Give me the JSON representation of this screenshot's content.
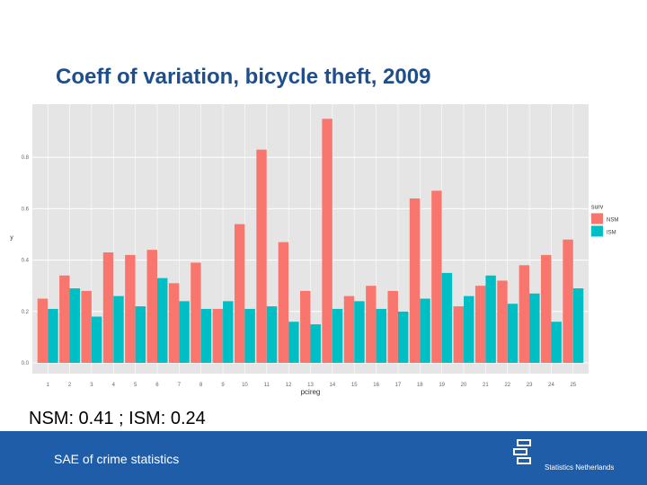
{
  "slide": {
    "title": "Coeff of variation, bicycle theft, 2009",
    "summary": "NSM: 0.41 ; ISM: 0.24",
    "footer_text": "SAE of crime statistics",
    "org_name": "Statistics Netherlands",
    "logo_text": "cbs"
  },
  "colors": {
    "NSM": "#f8766d",
    "ISM": "#00bfc4",
    "panel": "#e5e5e5",
    "grid": "#ffffff",
    "footer": "#1f5da8",
    "title": "#1f4e8c"
  },
  "chart_data": {
    "type": "bar",
    "title": "",
    "xlabel": "pcireg",
    "ylabel": "y",
    "ylim": [
      0,
      1.0
    ],
    "yticks": [
      "0.0",
      "0.2",
      "0.4",
      "0.6",
      "0.8"
    ],
    "yticks_values": [
      0,
      0.2,
      0.4,
      0.6,
      0.8
    ],
    "grid": true,
    "legend": {
      "title": "surv",
      "position": "right"
    },
    "categories": [
      "1",
      "2",
      "3",
      "4",
      "5",
      "6",
      "7",
      "8",
      "9",
      "10",
      "11",
      "12",
      "13",
      "14",
      "15",
      "16",
      "17",
      "18",
      "19",
      "20",
      "21",
      "22",
      "23",
      "24",
      "25"
    ],
    "series": [
      {
        "name": "NSM",
        "values": [
          0.25,
          0.34,
          0.28,
          0.43,
          0.42,
          0.44,
          0.31,
          0.39,
          0.21,
          0.54,
          0.83,
          0.47,
          0.28,
          0.95,
          0.26,
          0.3,
          0.28,
          0.64,
          0.67,
          0.22,
          0.3,
          0.32,
          0.38,
          0.42,
          0.48
        ]
      },
      {
        "name": "ISM",
        "values": [
          0.21,
          0.29,
          0.18,
          0.26,
          0.22,
          0.33,
          0.24,
          0.21,
          0.24,
          0.21,
          0.22,
          0.16,
          0.15,
          0.21,
          0.24,
          0.21,
          0.2,
          0.25,
          0.35,
          0.26,
          0.34,
          0.23,
          0.27,
          0.16,
          0.29
        ]
      }
    ]
  }
}
